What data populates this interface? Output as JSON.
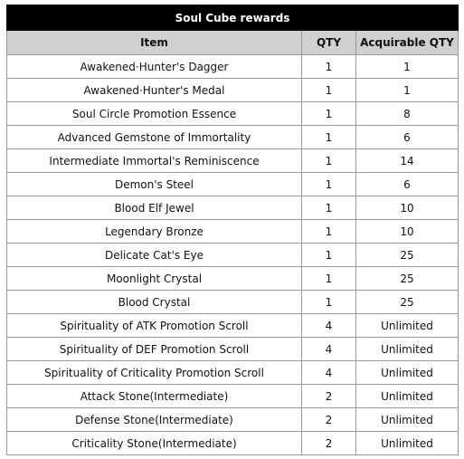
{
  "table": {
    "title": "Soul Cube rewards",
    "columns": [
      "Item",
      "QTY",
      "Acquirable QTY"
    ],
    "rows": [
      [
        "Awakened·Hunter's Dagger",
        1,
        1
      ],
      [
        "Awakened·Hunter's Medal",
        1,
        1
      ],
      [
        "Soul Circle Promotion Essence",
        1,
        8
      ],
      [
        "Advanced Gemstone of Immortality",
        1,
        6
      ],
      [
        "Intermediate Immortal's Reminiscence",
        1,
        14
      ],
      [
        "Demon's Steel",
        1,
        6
      ],
      [
        "Blood Elf Jewel",
        1,
        10
      ],
      [
        "Legendary Bronze",
        1,
        10
      ],
      [
        "Delicate Cat's Eye",
        1,
        25
      ],
      [
        "Moonlight Crystal",
        1,
        25
      ],
      [
        "Blood Crystal",
        1,
        25
      ],
      [
        "Spirituality of ATK Promotion Scroll",
        4,
        "Unlimited"
      ],
      [
        "Spirituality of DEF Promotion Scroll",
        4,
        "Unlimited"
      ],
      [
        "Spirituality of Criticality Promotion Scroll",
        4,
        "Unlimited"
      ],
      [
        "Attack Stone(Intermediate)",
        2,
        "Unlimited"
      ],
      [
        "Defense Stone(Intermediate)",
        2,
        "Unlimited"
      ],
      [
        "Criticality Stone(Intermediate)",
        2,
        "Unlimited"
      ]
    ]
  }
}
